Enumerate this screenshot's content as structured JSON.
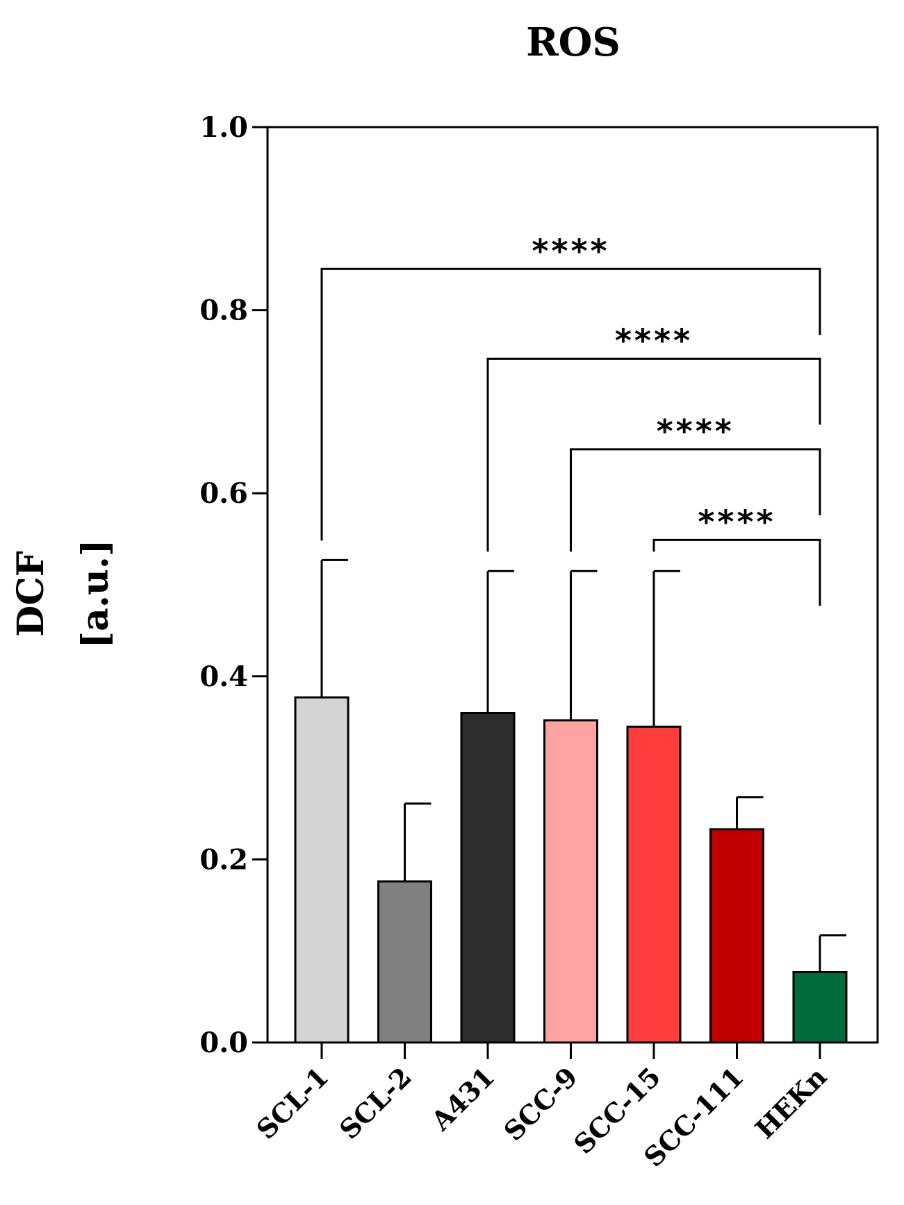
{
  "chart_data": {
    "type": "bar",
    "title": "ROS",
    "ylabel_line1": "DCF",
    "ylabel_line2": "[a.u.]",
    "xlabel": "",
    "ylim": [
      0,
      1.0
    ],
    "yticks": [
      "0.0",
      "0.2",
      "0.4",
      "0.6",
      "0.8",
      "1.0"
    ],
    "categories": [
      "SCL-1",
      "SCL-2",
      "A431",
      "SCC-9",
      "SCC-15",
      "SCC-111",
      "HEKn"
    ],
    "values": [
      0.377,
      0.176,
      0.36,
      0.352,
      0.345,
      0.233,
      0.077
    ],
    "errors": [
      0.15,
      0.085,
      0.155,
      0.163,
      0.17,
      0.035,
      0.04
    ],
    "colors": [
      "#d4d4d4",
      "#808080",
      "#2e2e2e",
      "#ffa3a3",
      "#ff3d3d",
      "#c00000",
      "#006b3c"
    ],
    "significance": [
      {
        "from": "SCL-1",
        "to": "HEKn",
        "label": "****",
        "bracket_y": 0.845
      },
      {
        "from": "A431",
        "to": "HEKn",
        "label": "****",
        "bracket_y": 0.747
      },
      {
        "from": "SCC-9",
        "to": "HEKn",
        "label": "****",
        "bracket_y": 0.648
      },
      {
        "from": "SCC-15",
        "to": "HEKn",
        "label": "****",
        "bracket_y": 0.549
      }
    ]
  }
}
